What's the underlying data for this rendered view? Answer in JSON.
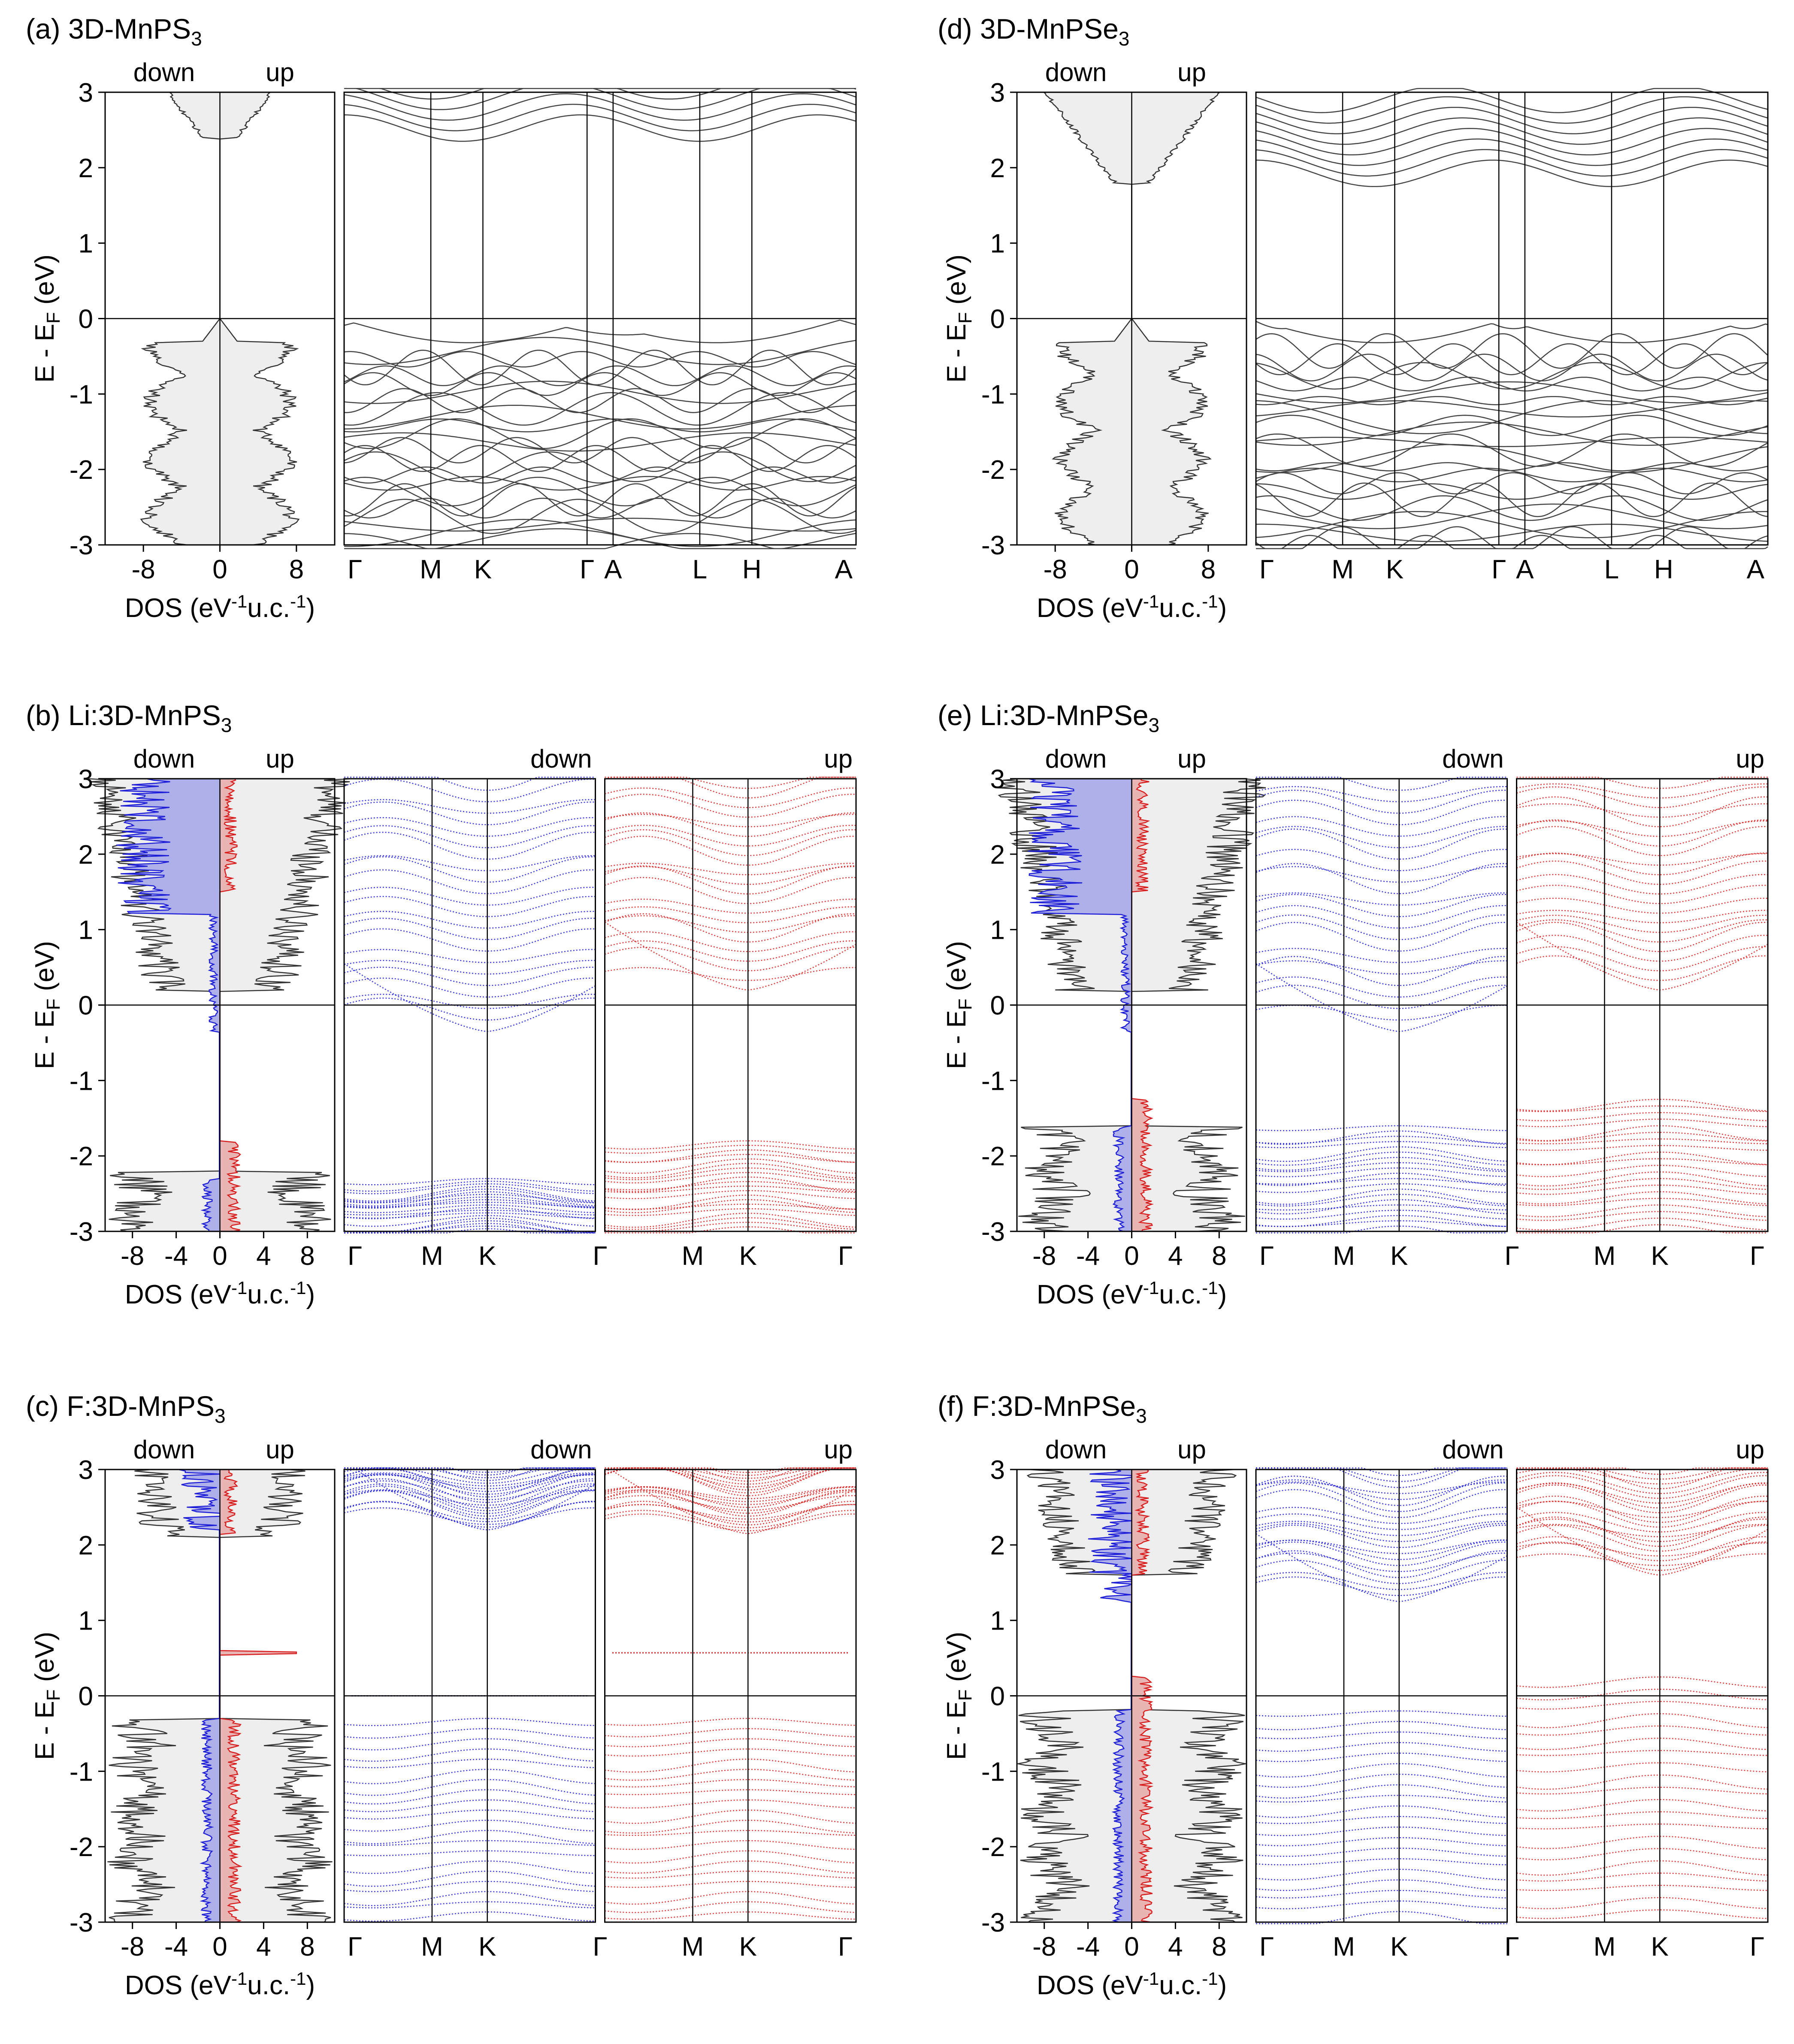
{
  "colors": {
    "down": "#1f1fd8",
    "up": "#d81f1f",
    "total": "#333333",
    "down_fill": "#aeb0ea",
    "up_fill": "#e9b4b4",
    "total_fill": "#eeeeee"
  },
  "chart_data": [
    {
      "id": "a",
      "type": "band-structure-dos",
      "title_main": "(a) 3D-MnPS",
      "title_sub": "3",
      "ylabel_main": "E - E",
      "ylabel_sub": "F",
      "ylabel_tail": " (eV)",
      "xlabel_dos": "DOS (eV",
      "xlabel_sup1": "-1",
      "xlabel_mid": "u.c.",
      "xlabel_sup2": "-1",
      "xlabel_tail": ")",
      "ylim": [
        -3,
        3
      ],
      "yticks": [
        "3",
        "2",
        "1",
        "0",
        "-1",
        "-2",
        "-3"
      ],
      "ytick_values": [
        3,
        2,
        1,
        0,
        -1,
        -2,
        -3
      ],
      "dos_ticks": [
        "-8",
        "0",
        "8"
      ],
      "dos_tick_values": [
        -8,
        0,
        8
      ],
      "dos_xlim": [
        -12,
        12
      ],
      "spin_labels": [
        "down",
        "up"
      ],
      "spin_resolved": false,
      "kpath": [
        "Γ",
        "M",
        "K",
        "Γ",
        "A",
        "L",
        "H",
        "A"
      ],
      "kpos": [
        0,
        0.333,
        0.533,
        0.933,
        1.033,
        1.366,
        1.566,
        1.966
      ],
      "band_panels": [
        {
          "label": "",
          "color": "total"
        }
      ],
      "cb_min": 2.4,
      "vb_max": 0.0,
      "vb_gap_to": -0.3,
      "dos_peaks": [
        -0.3,
        -1.0,
        -1.6,
        -1.9,
        -2.1,
        -2.4,
        -2.6
      ]
    },
    {
      "id": "b",
      "type": "band-structure-dos",
      "title_main": "(b) Li:3D-MnPS",
      "title_sub": "3",
      "ylabel_main": "E - E",
      "ylabel_sub": "F",
      "ylabel_tail": " (eV)",
      "xlabel_dos": "DOS (eV",
      "xlabel_sup1": "-1",
      "xlabel_mid": "u.c.",
      "xlabel_sup2": "-1",
      "xlabel_tail": ")",
      "ylim": [
        -3,
        3
      ],
      "yticks": [
        "3",
        "2",
        "1",
        "0",
        "-1",
        "-2",
        "-3"
      ],
      "ytick_values": [
        3,
        2,
        1,
        0,
        -1,
        -2,
        -3
      ],
      "dos_ticks": [
        "-8",
        "-4",
        "0",
        "4",
        "8"
      ],
      "dos_tick_values": [
        -8,
        -4,
        0,
        4,
        8
      ],
      "dos_xlim": [
        -10.5,
        10.5
      ],
      "spin_labels": [
        "down",
        "up"
      ],
      "spin_resolved": true,
      "kpath": [
        "Γ",
        "M",
        "K",
        "Γ",
        "M",
        "K",
        "Γ"
      ],
      "band_panels": [
        {
          "label": "down",
          "color": "down",
          "kpath": [
            "Γ",
            "M",
            "K",
            "Γ"
          ],
          "kpos": [
            0,
            0.35,
            0.57,
            1.0
          ]
        },
        {
          "label": "up",
          "color": "up",
          "kpath": [
            "M",
            "K",
            "Γ"
          ],
          "kpos": [
            0,
            0.35,
            0.57,
            1.0
          ]
        }
      ],
      "cb_min_down": -0.35,
      "cb_min_up": 0.2,
      "vb_top_down": -2.3,
      "vb_top_up": -1.8
    },
    {
      "id": "c",
      "type": "band-structure-dos",
      "title_main": "(c) F:3D-MnPS",
      "title_sub": "3",
      "ylabel_main": "E - E",
      "ylabel_sub": "F",
      "ylabel_tail": " (eV)",
      "xlabel_dos": "DOS (eV",
      "xlabel_sup1": "-1",
      "xlabel_mid": "u.c.",
      "xlabel_sup2": "-1",
      "xlabel_tail": ")",
      "ylim": [
        -3,
        3
      ],
      "yticks": [
        "3",
        "2",
        "1",
        "0",
        "-1",
        "-2",
        "-3"
      ],
      "ytick_values": [
        3,
        2,
        1,
        0,
        -1,
        -2,
        -3
      ],
      "dos_ticks": [
        "-8",
        "-4",
        "0",
        "4",
        "8"
      ],
      "dos_tick_values": [
        -8,
        -4,
        0,
        4,
        8
      ],
      "dos_xlim": [
        -10.5,
        10.5
      ],
      "spin_labels": [
        "down",
        "up"
      ],
      "spin_resolved": true,
      "kpath": [
        "Γ",
        "M",
        "K",
        "Γ",
        "M",
        "K",
        "Γ"
      ],
      "band_panels": [
        {
          "label": "down",
          "color": "down",
          "kpath": [
            "Γ",
            "M",
            "K",
            "Γ"
          ],
          "kpos": [
            0,
            0.35,
            0.57,
            1.0
          ]
        },
        {
          "label": "up",
          "color": "up",
          "kpath": [
            "M",
            "K",
            "Γ"
          ],
          "kpos": [
            0,
            0.35,
            0.57,
            1.0
          ]
        }
      ],
      "cb_min_down": 2.2,
      "cb_min_up": 2.15,
      "defect_level_up": 0.57,
      "defect_level_down": 0.0,
      "vb_top": -0.3
    },
    {
      "id": "d",
      "type": "band-structure-dos",
      "title_main": "(d) 3D-MnPSe",
      "title_sub": "3",
      "ylabel_main": "E - E",
      "ylabel_sub": "F",
      "ylabel_tail": " (eV)",
      "xlabel_dos": "DOS (eV",
      "xlabel_sup1": "-1",
      "xlabel_mid": "u.c.",
      "xlabel_sup2": "-1",
      "xlabel_tail": ")",
      "ylim": [
        -3,
        3
      ],
      "yticks": [
        "3",
        "2",
        "1",
        "0",
        "-1",
        "-2",
        "-3"
      ],
      "ytick_values": [
        3,
        2,
        1,
        0,
        -1,
        -2,
        -3
      ],
      "dos_ticks": [
        "-8",
        "0",
        "8"
      ],
      "dos_tick_values": [
        -8,
        0,
        8
      ],
      "dos_xlim": [
        -12,
        12
      ],
      "spin_labels": [
        "down",
        "up"
      ],
      "spin_resolved": false,
      "kpath": [
        "Γ",
        "M",
        "K",
        "Γ",
        "A",
        "L",
        "H",
        "A"
      ],
      "kpos": [
        0,
        0.333,
        0.533,
        0.933,
        1.033,
        1.366,
        1.566,
        1.966
      ],
      "band_panels": [
        {
          "label": "",
          "color": "total"
        }
      ],
      "cb_min": 1.8,
      "vb_max": 0.0,
      "vb_gap_to": -0.3,
      "dos_peaks": [
        -0.3,
        -0.7,
        -1.1,
        -1.5,
        -1.8,
        -2.2,
        -2.6
      ]
    },
    {
      "id": "e",
      "type": "band-structure-dos",
      "title_main": "(e) Li:3D-MnPSe",
      "title_sub": "3",
      "ylabel_main": "E - E",
      "ylabel_sub": "F",
      "ylabel_tail": " (eV)",
      "xlabel_dos": "DOS (eV",
      "xlabel_sup1": "-1",
      "xlabel_mid": "u.c.",
      "xlabel_sup2": "-1",
      "xlabel_tail": ")",
      "ylim": [
        -3,
        3
      ],
      "yticks": [
        "3",
        "2",
        "1",
        "0",
        "-1",
        "-2",
        "-3"
      ],
      "ytick_values": [
        3,
        2,
        1,
        0,
        -1,
        -2,
        -3
      ],
      "dos_ticks": [
        "-8",
        "-4",
        "0",
        "4",
        "8"
      ],
      "dos_tick_values": [
        -8,
        -4,
        0,
        4,
        8
      ],
      "dos_xlim": [
        -10.5,
        10.5
      ],
      "spin_labels": [
        "down",
        "up"
      ],
      "spin_resolved": true,
      "kpath": [
        "Γ",
        "M",
        "K",
        "Γ",
        "M",
        "K",
        "Γ"
      ],
      "band_panels": [
        {
          "label": "down",
          "color": "down",
          "kpath": [
            "Γ",
            "M",
            "K",
            "Γ"
          ],
          "kpos": [
            0,
            0.35,
            0.57,
            1.0
          ]
        },
        {
          "label": "up",
          "color": "up",
          "kpath": [
            "M",
            "K",
            "Γ"
          ],
          "kpos": [
            0,
            0.35,
            0.57,
            1.0
          ]
        }
      ],
      "cb_min_down": -0.35,
      "cb_min_up": 0.2,
      "vb_top_down": -1.6,
      "vb_top_up": -1.25
    },
    {
      "id": "f",
      "type": "band-structure-dos",
      "title_main": "(f) F:3D-MnPSe",
      "title_sub": "3",
      "ylabel_main": "E - E",
      "ylabel_sub": "F",
      "ylabel_tail": " (eV)",
      "xlabel_dos": "DOS (eV",
      "xlabel_sup1": "-1",
      "xlabel_mid": "u.c.",
      "xlabel_sup2": "-1",
      "xlabel_tail": ")",
      "ylim": [
        -3,
        3
      ],
      "yticks": [
        "3",
        "2",
        "1",
        "0",
        "-1",
        "-2",
        "-3"
      ],
      "ytick_values": [
        3,
        2,
        1,
        0,
        -1,
        -2,
        -3
      ],
      "dos_ticks": [
        "-8",
        "-4",
        "0",
        "4",
        "8"
      ],
      "dos_tick_values": [
        -8,
        -4,
        0,
        4,
        8
      ],
      "dos_xlim": [
        -10.5,
        10.5
      ],
      "spin_labels": [
        "down",
        "up"
      ],
      "spin_resolved": true,
      "kpath": [
        "Γ",
        "M",
        "K",
        "Γ",
        "M",
        "K",
        "Γ"
      ],
      "band_panels": [
        {
          "label": "down",
          "color": "down",
          "kpath": [
            "Γ",
            "M",
            "K",
            "Γ"
          ],
          "kpos": [
            0,
            0.35,
            0.57,
            1.0
          ]
        },
        {
          "label": "up",
          "color": "up",
          "kpath": [
            "M",
            "K",
            "Γ"
          ],
          "kpos": [
            0,
            0.35,
            0.57,
            1.0
          ]
        }
      ],
      "cb_min_down": 1.25,
      "cb_min_up": 1.6,
      "vb_top_down": -0.2,
      "vb_top_up": 0.25
    }
  ]
}
